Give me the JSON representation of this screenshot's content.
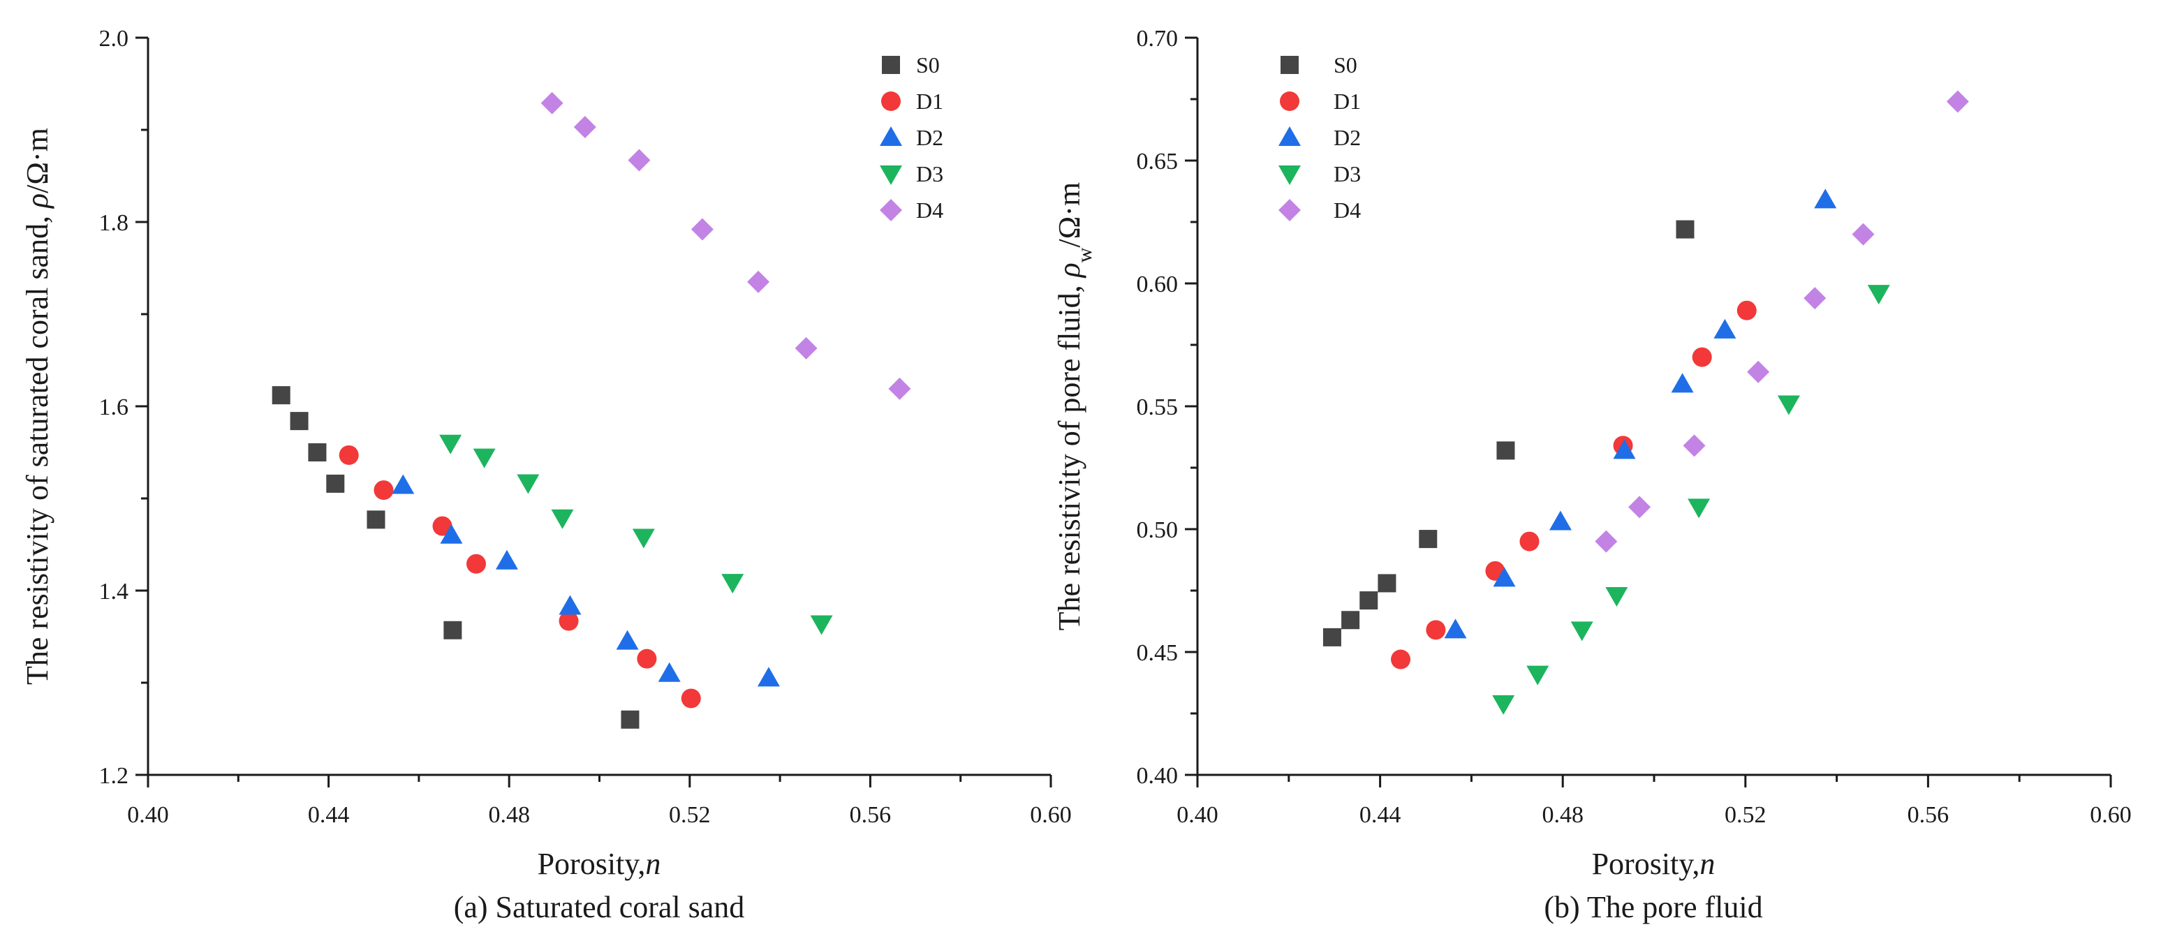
{
  "chart_data": [
    {
      "type": "scatter",
      "caption": "(a) Saturated coral sand",
      "xlabel_text": "Porosity,",
      "xlabel_symbol": "n",
      "ylabel_text": "The resistivity of saturated coral sand,",
      "ylabel_symbol": "ρ",
      "ylabel_unit": "/Ω·m",
      "xlim": [
        0.4,
        0.6
      ],
      "ylim": [
        1.2,
        2.0
      ],
      "xticks": [
        0.4,
        0.44,
        0.48,
        0.52,
        0.56,
        0.6
      ],
      "xtick_labels": [
        "0.40",
        "0.44",
        "0.48",
        "0.52",
        "0.56",
        "0.60"
      ],
      "yticks": [
        1.2,
        1.4,
        1.6,
        1.8,
        2.0
      ],
      "ytick_labels": [
        "1.2",
        "1.4",
        "1.6",
        "1.8",
        "2.0"
      ],
      "legend_position": "top-right",
      "series": [
        {
          "name": "S0",
          "marker": "square",
          "color": "#454545",
          "x": [
            0.4295,
            0.4335,
            0.4375,
            0.4415,
            0.4505,
            0.4675,
            0.5068
          ],
          "y": [
            1.612,
            1.584,
            1.55,
            1.516,
            1.477,
            1.357,
            1.26
          ]
        },
        {
          "name": "D1",
          "marker": "circle",
          "color": "#f23838",
          "x": [
            0.4445,
            0.4522,
            0.4652,
            0.4727,
            0.4932,
            0.5105,
            0.5203
          ],
          "y": [
            1.547,
            1.509,
            1.47,
            1.429,
            1.367,
            1.326,
            1.283
          ]
        },
        {
          "name": "D2",
          "marker": "triangle-up",
          "color": "#1f6ee8",
          "x": [
            0.4565,
            0.4672,
            0.4795,
            0.4935,
            0.5062,
            0.5155,
            0.5375
          ],
          "y": [
            1.514,
            1.46,
            1.432,
            1.383,
            1.345,
            1.31,
            1.305
          ]
        },
        {
          "name": "D3",
          "marker": "triangle-down",
          "color": "#1db45e",
          "x": [
            0.467,
            0.4745,
            0.4842,
            0.4918,
            0.5098,
            0.5295,
            0.5492
          ],
          "y": [
            1.56,
            1.545,
            1.517,
            1.479,
            1.458,
            1.409,
            1.364
          ]
        },
        {
          "name": "D4",
          "marker": "diamond",
          "color": "#c383e5",
          "x": [
            0.4895,
            0.4968,
            0.5088,
            0.5228,
            0.5352,
            0.5458,
            0.5665
          ],
          "y": [
            1.929,
            1.903,
            1.867,
            1.792,
            1.735,
            1.663,
            1.619
          ]
        }
      ]
    },
    {
      "type": "scatter",
      "caption": "(b)  The pore fluid",
      "xlabel_text": "Porosity,",
      "xlabel_symbol": "n",
      "ylabel_text": "The resistivity of pore fluid,",
      "ylabel_symbol": "ρ",
      "ylabel_subscript": "w",
      "ylabel_unit": "/Ω·m",
      "xlim": [
        0.4,
        0.6
      ],
      "ylim": [
        0.4,
        0.7
      ],
      "xticks": [
        0.4,
        0.44,
        0.48,
        0.52,
        0.56,
        0.6
      ],
      "xtick_labels": [
        "0.40",
        "0.44",
        "0.48",
        "0.52",
        "0.56",
        "0.60"
      ],
      "yticks": [
        0.4,
        0.45,
        0.5,
        0.55,
        0.6,
        0.65,
        0.7
      ],
      "ytick_labels": [
        "0.40",
        "0.45",
        "0.50",
        "0.55",
        "0.60",
        "0.65",
        "0.70"
      ],
      "legend_position": "top-left",
      "series": [
        {
          "name": "S0",
          "marker": "square",
          "color": "#454545",
          "x": [
            0.4295,
            0.4335,
            0.4375,
            0.4415,
            0.4505,
            0.4675,
            0.5068
          ],
          "y": [
            0.456,
            0.463,
            0.471,
            0.478,
            0.496,
            0.532,
            0.622
          ]
        },
        {
          "name": "D1",
          "marker": "circle",
          "color": "#f23838",
          "x": [
            0.4445,
            0.4522,
            0.4652,
            0.4727,
            0.4932,
            0.5105,
            0.5203
          ],
          "y": [
            0.447,
            0.459,
            0.483,
            0.495,
            0.534,
            0.57,
            0.589
          ]
        },
        {
          "name": "D2",
          "marker": "triangle-up",
          "color": "#1f6ee8",
          "x": [
            0.4565,
            0.4672,
            0.4795,
            0.4935,
            0.5062,
            0.5155,
            0.5375
          ],
          "y": [
            0.459,
            0.48,
            0.503,
            0.532,
            0.559,
            0.581,
            0.634
          ]
        },
        {
          "name": "D3",
          "marker": "triangle-down",
          "color": "#1db45e",
          "x": [
            0.467,
            0.4745,
            0.4842,
            0.4918,
            0.5098,
            0.5295,
            0.5492
          ],
          "y": [
            0.429,
            0.441,
            0.459,
            0.473,
            0.509,
            0.551,
            0.596
          ]
        },
        {
          "name": "D4",
          "marker": "diamond",
          "color": "#c383e5",
          "x": [
            0.4895,
            0.4968,
            0.5088,
            0.5228,
            0.5352,
            0.5458,
            0.5665
          ],
          "y": [
            0.495,
            0.509,
            0.534,
            0.564,
            0.594,
            0.62,
            0.674
          ]
        }
      ]
    }
  ]
}
